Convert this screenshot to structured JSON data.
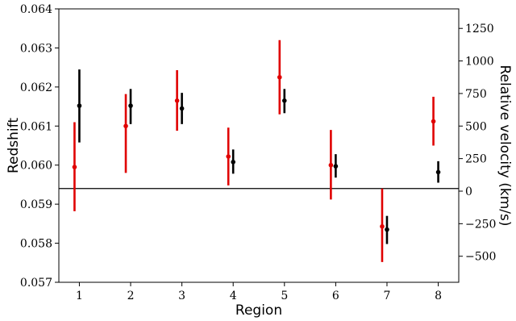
{
  "chart_data": {
    "type": "scatter",
    "title": "",
    "xlabel": "Region",
    "ylabel": "Redshift",
    "y2label": "Relative velocity (km/s)",
    "xlim": [
      0.6,
      8.4
    ],
    "ylim": [
      0.057,
      0.064
    ],
    "y2lim": [
      -700,
      1400
    ],
    "x_ticks": [
      1,
      2,
      3,
      4,
      5,
      6,
      7,
      8
    ],
    "y_ticks": [
      "0.057",
      "0.058",
      "0.059",
      "0.060",
      "0.061",
      "0.062",
      "0.063",
      "0.064"
    ],
    "y2_ticks": [
      "−500",
      "−250",
      "0",
      "250",
      "500",
      "750",
      "1000",
      "1250"
    ],
    "reference_line": {
      "y": 0.0594
    },
    "grid": false,
    "series": [
      {
        "color": "#e00000",
        "points": [
          {
            "x": 1,
            "y": 0.05995,
            "low": 0.05882,
            "high": 0.0611
          },
          {
            "x": 2,
            "y": 0.061,
            "low": 0.0598,
            "high": 0.06182
          },
          {
            "x": 3,
            "y": 0.06165,
            "low": 0.06088,
            "high": 0.06243
          },
          {
            "x": 4,
            "y": 0.06022,
            "low": 0.05948,
            "high": 0.06096
          },
          {
            "x": 5,
            "y": 0.06225,
            "low": 0.0613,
            "high": 0.0632
          },
          {
            "x": 6,
            "y": 0.06,
            "low": 0.05912,
            "high": 0.0609
          },
          {
            "x": 7,
            "y": 0.05843,
            "low": 0.05752,
            "high": 0.0594
          },
          {
            "x": 8,
            "y": 0.06112,
            "low": 0.0605,
            "high": 0.06175
          }
        ]
      },
      {
        "color": "#000000",
        "points": [
          {
            "x": 1,
            "y": 0.06152,
            "low": 0.06058,
            "high": 0.06245
          },
          {
            "x": 2,
            "y": 0.06152,
            "low": 0.06105,
            "high": 0.06195
          },
          {
            "x": 3,
            "y": 0.06145,
            "low": 0.06105,
            "high": 0.06185
          },
          {
            "x": 4,
            "y": 0.06008,
            "low": 0.05978,
            "high": 0.0604
          },
          {
            "x": 5,
            "y": 0.06165,
            "low": 0.06133,
            "high": 0.06195
          },
          {
            "x": 6,
            "y": 0.05997,
            "low": 0.05968,
            "high": 0.06028
          },
          {
            "x": 7,
            "y": 0.05835,
            "low": 0.05798,
            "high": 0.0587
          },
          {
            "x": 8,
            "y": 0.05982,
            "low": 0.05955,
            "high": 0.0601
          }
        ]
      }
    ]
  }
}
